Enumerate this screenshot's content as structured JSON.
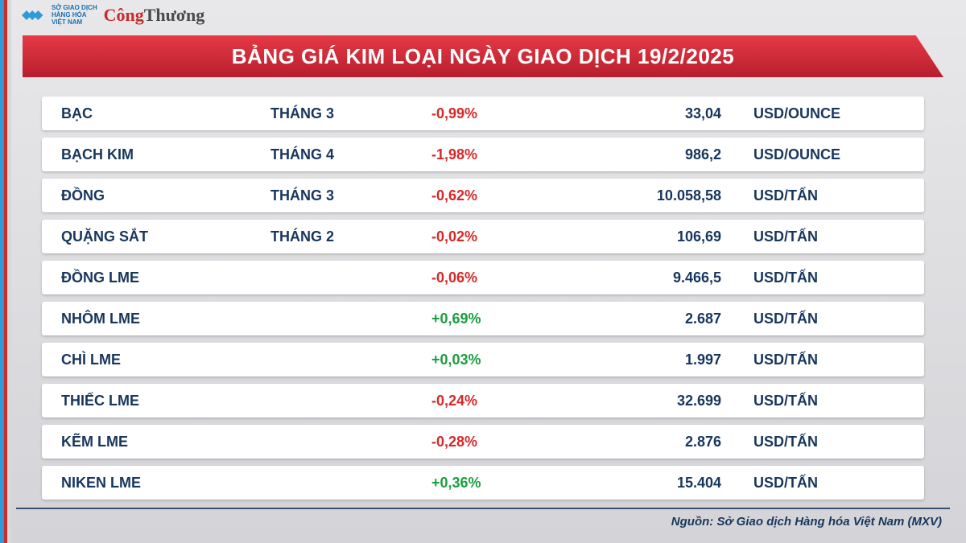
{
  "brand": {
    "mxv_line1": "SỞ GIAO DỊCH",
    "mxv_line2": "HÀNG HÓA",
    "mxv_line3": "VIỆT NAM",
    "congthuong_a": "Công",
    "congthuong_b": "Thương"
  },
  "title": "BẢNG GIÁ KIM LOẠI NGÀY GIAO DỊCH 19/2/2025",
  "colors": {
    "banner_top": "#e63946",
    "banner_bottom": "#b81e2d",
    "text_primary": "#17365d",
    "negative": "#d62828",
    "positive": "#1a9e3e",
    "row_bg": "#ffffff",
    "page_bg_top": "#e8e8ea",
    "page_bg_bottom": "#d4d4d8"
  },
  "columns": [
    "name",
    "month",
    "change",
    "price",
    "unit"
  ],
  "rows": [
    {
      "name": "BẠC",
      "month": "THÁNG 3",
      "change": "-0,99%",
      "dir": "neg",
      "price": "33,04",
      "unit": "USD/OUNCE"
    },
    {
      "name": "BẠCH KIM",
      "month": "THÁNG 4",
      "change": "-1,98%",
      "dir": "neg",
      "price": "986,2",
      "unit": "USD/OUNCE"
    },
    {
      "name": "ĐỒNG",
      "month": "THÁNG 3",
      "change": "-0,62%",
      "dir": "neg",
      "price": "10.058,58",
      "unit": "USD/TẤN"
    },
    {
      "name": "QUẶNG SẮT",
      "month": "THÁNG 2",
      "change": "-0,02%",
      "dir": "neg",
      "price": "106,69",
      "unit": "USD/TẤN"
    },
    {
      "name": "ĐỒNG LME",
      "month": "",
      "change": "-0,06%",
      "dir": "neg",
      "price": "9.466,5",
      "unit": "USD/TẤN"
    },
    {
      "name": "NHÔM LME",
      "month": "",
      "change": "+0,69%",
      "dir": "pos",
      "price": "2.687",
      "unit": "USD/TẤN"
    },
    {
      "name": "CHÌ LME",
      "month": "",
      "change": "+0,03%",
      "dir": "pos",
      "price": "1.997",
      "unit": "USD/TẤN"
    },
    {
      "name": "THIẾC LME",
      "month": "",
      "change": "-0,24%",
      "dir": "neg",
      "price": "32.699",
      "unit": "USD/TẤN"
    },
    {
      "name": "KẼM LME",
      "month": "",
      "change": "-0,28%",
      "dir": "neg",
      "price": "2.876",
      "unit": "USD/TẤN"
    },
    {
      "name": "NIKEN LME",
      "month": "",
      "change": "+0,36%",
      "dir": "pos",
      "price": "15.404",
      "unit": "USD/TẤN"
    }
  ],
  "source": "Nguồn: Sở Giao dịch Hàng hóa Việt Nam (MXV)"
}
